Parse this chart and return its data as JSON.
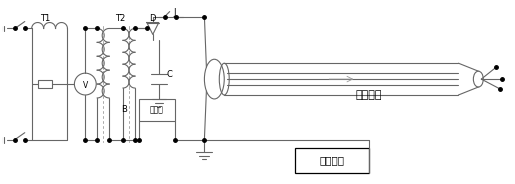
{
  "bg_color": "#ffffff",
  "col": "#666666",
  "col_dark": "#333333",
  "figsize": [
    5.15,
    1.84
  ],
  "dpi": 100,
  "label_T1": "T1",
  "label_T2": "T2",
  "label_D": "D",
  "label_J": "J",
  "label_B": "B",
  "label_C": "C",
  "label_caiyanghe": "采样盒",
  "label_ceshi": "测试主机",
  "label_cable": "被测电缆",
  "ytop": 28,
  "ybot": 140,
  "ymid": 84
}
